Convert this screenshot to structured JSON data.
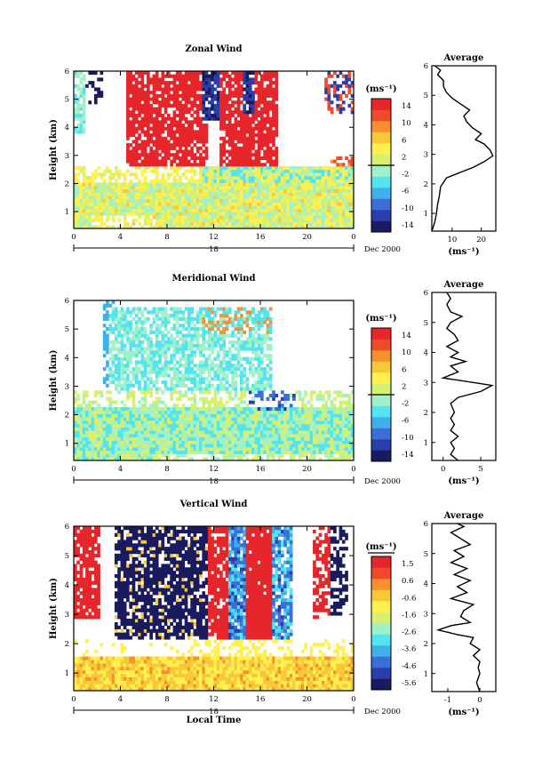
{
  "palette": [
    "#1a1a5e",
    "#2b3da8",
    "#3a6fd8",
    "#3fb0ea",
    "#52e4f0",
    "#a0f0c8",
    "#d8f070",
    "#fff050",
    "#f8c838",
    "#f89030",
    "#f04a2c",
    "#e6262a"
  ],
  "chart_data": [
    {
      "type": "heatmap",
      "title": "Zonal Wind",
      "ylabel": "Height (km)",
      "x_ticks": [
        "0",
        "4",
        "8",
        "12",
        "16",
        "20",
        "0"
      ],
      "x_range": [
        0,
        24
      ],
      "y_ticks": [
        "1",
        "2",
        "3",
        "4",
        "5",
        "6"
      ],
      "y_range": [
        0.4,
        6
      ],
      "date_tick": "18",
      "date_suffix": "Dec 2000",
      "colorbar": {
        "unit": "(ms⁻¹)",
        "ticks": [
          "14",
          "10",
          "6",
          "2",
          "-2",
          "-6",
          "-10",
          "-14"
        ],
        "range": [
          -16,
          16
        ]
      },
      "average": {
        "title": "Average",
        "xlabel": "(ms⁻¹)",
        "x_ticks": [
          "10",
          "20"
        ],
        "x_range": [
          3,
          25
        ],
        "y_ticks": [
          "1",
          "2",
          "3",
          "4",
          "5",
          "6"
        ],
        "y_range": [
          0.4,
          6
        ],
        "profile": [
          [
            3,
            0.4
          ],
          [
            4,
            0.7
          ],
          [
            4.6,
            1.0
          ],
          [
            5,
            1.3
          ],
          [
            5.6,
            1.6
          ],
          [
            6,
            1.9
          ],
          [
            8,
            2.2
          ],
          [
            13,
            2.4
          ],
          [
            17,
            2.55
          ],
          [
            21,
            2.75
          ],
          [
            24,
            2.95
          ],
          [
            23,
            3.15
          ],
          [
            21,
            3.35
          ],
          [
            18,
            3.5
          ],
          [
            20,
            3.7
          ],
          [
            17,
            3.9
          ],
          [
            15,
            4.1
          ],
          [
            14,
            4.3
          ],
          [
            16,
            4.5
          ],
          [
            13,
            4.7
          ],
          [
            10,
            4.9
          ],
          [
            8,
            5.1
          ],
          [
            7,
            5.3
          ],
          [
            7,
            5.5
          ],
          [
            5,
            5.7
          ],
          [
            6,
            5.85
          ],
          [
            4,
            6.0
          ]
        ]
      }
    },
    {
      "type": "heatmap",
      "title": "Meridional Wind",
      "ylabel": "Height (km)",
      "x_ticks": [
        "0",
        "4",
        "8",
        "12",
        "16",
        "20",
        "0"
      ],
      "x_range": [
        0,
        24
      ],
      "y_ticks": [
        "1",
        "2",
        "3",
        "4",
        "5",
        "6"
      ],
      "y_range": [
        0.4,
        6
      ],
      "date_tick": "18",
      "date_suffix": "Dec 2000",
      "colorbar": {
        "unit": "(ms⁻¹)",
        "ticks": [
          "14",
          "10",
          "6",
          "2",
          "-2",
          "-6",
          "-10",
          "-14"
        ],
        "range": [
          -16,
          16
        ]
      },
      "average": {
        "title": "Average",
        "xlabel": "(ms⁻¹)",
        "x_ticks": [
          "0",
          "5"
        ],
        "x_range": [
          -1.5,
          7
        ],
        "y_ticks": [
          "1",
          "2",
          "3",
          "4",
          "5",
          "6"
        ],
        "y_range": [
          0.4,
          6
        ],
        "profile": [
          [
            2,
            0.4
          ],
          [
            1,
            0.6
          ],
          [
            1.5,
            0.8
          ],
          [
            1,
            1.0
          ],
          [
            2,
            1.2
          ],
          [
            1,
            1.4
          ],
          [
            1.5,
            1.6
          ],
          [
            1,
            1.8
          ],
          [
            1.5,
            2.0
          ],
          [
            1,
            2.3
          ],
          [
            2,
            2.5
          ],
          [
            5,
            2.7
          ],
          [
            6.5,
            2.9
          ],
          [
            4,
            3.0
          ],
          [
            0,
            3.15
          ],
          [
            2,
            3.35
          ],
          [
            1,
            3.55
          ],
          [
            3,
            3.7
          ],
          [
            1,
            3.85
          ],
          [
            2,
            4.0
          ],
          [
            0.5,
            4.2
          ],
          [
            2,
            4.4
          ],
          [
            1.5,
            4.6
          ],
          [
            0.5,
            4.8
          ],
          [
            1,
            5.0
          ],
          [
            2.5,
            5.2
          ],
          [
            1,
            5.35
          ],
          [
            0.5,
            5.6
          ],
          [
            1,
            5.8
          ],
          [
            0.5,
            6.0
          ]
        ]
      }
    },
    {
      "type": "heatmap",
      "title": "Vertical Wind",
      "ylabel": "Height (km)",
      "xlabel": "Local Time",
      "x_ticks": [
        "0",
        "4",
        "8",
        "12",
        "16",
        "20",
        "0"
      ],
      "x_range": [
        0,
        24
      ],
      "y_ticks": [
        "1",
        "2",
        "3",
        "4",
        "5",
        "6"
      ],
      "y_range": [
        0.4,
        6
      ],
      "date_tick": "18",
      "date_suffix": "Dec 2000",
      "colorbar": {
        "unit": "(ms⁻¹)",
        "ticks": [
          "1.5",
          "0.6",
          "-0.6",
          "-1.6",
          "-2.6",
          "-3.6",
          "-4.6",
          "-5.6"
        ],
        "range": [
          -6,
          2
        ]
      },
      "average": {
        "title": "Average",
        "xlabel": "(ms⁻¹)",
        "x_ticks": [
          "-1",
          "0"
        ],
        "x_range": [
          -1.5,
          0.5
        ],
        "y_ticks": [
          "1",
          "2",
          "3",
          "4",
          "5",
          "6"
        ],
        "y_range": [
          0.4,
          6
        ],
        "profile": [
          [
            0,
            0.4
          ],
          [
            -0.1,
            0.7
          ],
          [
            0,
            1.0
          ],
          [
            -0.05,
            1.2
          ],
          [
            0,
            1.4
          ],
          [
            -0.2,
            1.6
          ],
          [
            0,
            1.8
          ],
          [
            -0.3,
            2.0
          ],
          [
            -0.2,
            2.2
          ],
          [
            -0.7,
            2.3
          ],
          [
            -1.3,
            2.45
          ],
          [
            -0.9,
            2.6
          ],
          [
            -0.3,
            2.7
          ],
          [
            -0.6,
            2.9
          ],
          [
            -0.5,
            3.1
          ],
          [
            -0.2,
            3.3
          ],
          [
            -0.9,
            3.5
          ],
          [
            -0.4,
            3.7
          ],
          [
            -0.7,
            3.9
          ],
          [
            -0.3,
            4.1
          ],
          [
            -0.8,
            4.3
          ],
          [
            -0.4,
            4.5
          ],
          [
            -0.9,
            4.7
          ],
          [
            -0.5,
            4.9
          ],
          [
            -0.8,
            5.1
          ],
          [
            -0.3,
            5.3
          ],
          [
            -0.6,
            5.5
          ],
          [
            -0.9,
            5.7
          ],
          [
            -0.5,
            5.9
          ],
          [
            -0.7,
            6.0
          ]
        ]
      }
    }
  ]
}
